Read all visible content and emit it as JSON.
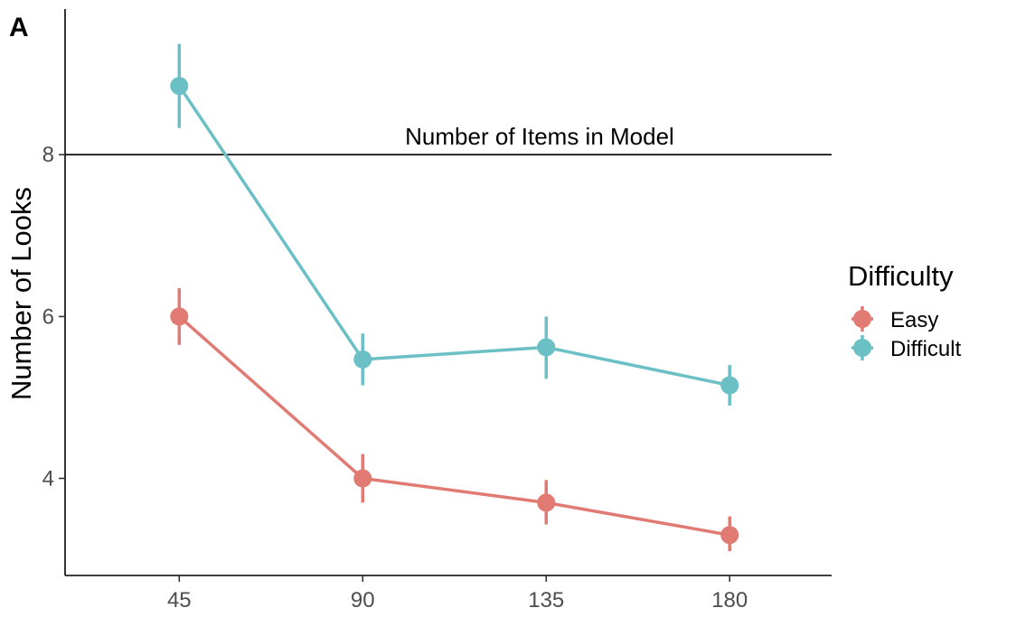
{
  "panel_label": "A",
  "chart_data": {
    "type": "line",
    "title": "",
    "xlabel": "",
    "ylabel": "Number of Looks",
    "x": [
      45,
      90,
      135,
      180
    ],
    "x_tick_labels": [
      "45",
      "90",
      "135",
      "180"
    ],
    "y_ticks": [
      4,
      6,
      8
    ],
    "y_tick_labels": [
      "4",
      "6",
      "8"
    ],
    "xlim": [
      17,
      205
    ],
    "ylim": [
      2.8,
      9.8
    ],
    "grid": false,
    "legend_position": "right",
    "legend_title": "Difficulty",
    "series": [
      {
        "name": "Easy",
        "color": "#e07a73",
        "values": [
          6.0,
          4.0,
          3.7,
          3.3
        ],
        "error_low": [
          5.65,
          3.7,
          3.43,
          3.1
        ],
        "error_high": [
          6.35,
          4.3,
          3.98,
          3.53
        ]
      },
      {
        "name": "Difficult",
        "color": "#6bc0c6",
        "values": [
          8.85,
          5.47,
          5.62,
          5.15
        ],
        "error_low": [
          8.33,
          5.15,
          5.23,
          4.9
        ],
        "error_high": [
          9.37,
          5.79,
          6.0,
          5.4
        ]
      }
    ],
    "reference_line": {
      "y": 8,
      "label": "Number of Items in Model"
    }
  }
}
